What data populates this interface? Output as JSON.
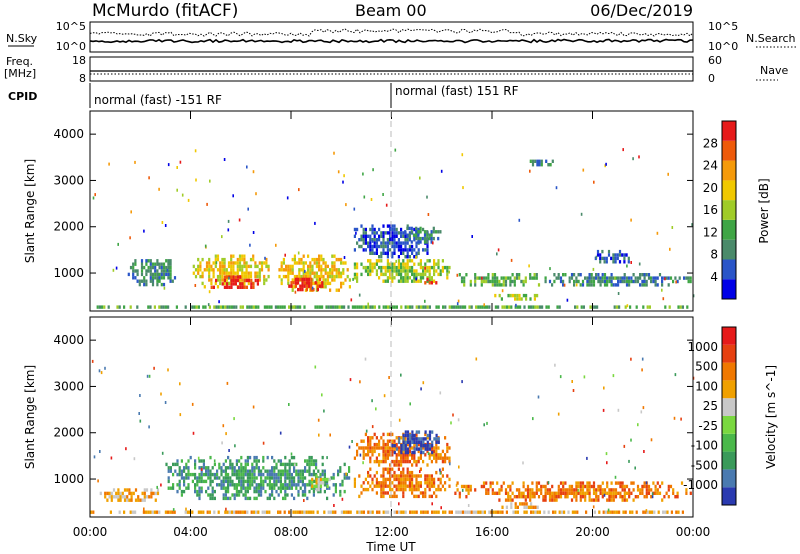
{
  "header": {
    "station": "McMurdo (fitACF)",
    "beam": "Beam 00",
    "date": "06/Dec/2019"
  },
  "noise_panel": {
    "left_label": "N.Sky",
    "right_label": "N.Search",
    "left_ticks": [
      "10^5",
      "10^0"
    ],
    "right_ticks": [
      "10^5",
      "10^0"
    ]
  },
  "freq_panel": {
    "left_label_1": "Freq.",
    "left_label_2": "[MHz]",
    "left_ticks": [
      "18",
      "8"
    ],
    "right_label": "Nave",
    "right_ticks": [
      "60",
      "0"
    ],
    "cpid_label": "CPID",
    "modes": [
      {
        "text": "normal (fast) -151 RF",
        "start_hour": 0
      },
      {
        "text": "normal (fast) 151 RF",
        "start_hour": 12
      }
    ]
  },
  "chart_data": [
    {
      "type": "heatmap",
      "name": "power",
      "ylabel": "Slant Range [km]",
      "xlabel": "",
      "x_ticks": [
        "00:00",
        "04:00",
        "08:00",
        "12:00",
        "16:00",
        "20:00",
        "00:00"
      ],
      "y_ticks": [
        1000,
        2000,
        3000,
        4000
      ],
      "xlim": [
        0,
        24
      ],
      "ylim": [
        180,
        4500
      ],
      "colorbar": {
        "label": "Power [dB]",
        "tick_labels": [
          "28",
          "24",
          "20",
          "16",
          "12",
          "8",
          "4"
        ],
        "colors": [
          "#0000e6",
          "#2a55c8",
          "#4a8a6a",
          "#3fa545",
          "#a0cc28",
          "#f0c800",
          "#f59a0a",
          "#ee5a0a",
          "#e61a1a"
        ]
      },
      "regions": [
        {
          "t0": 0.0,
          "t1": 24.0,
          "r0": 180,
          "r1": 300,
          "level": 3
        },
        {
          "t0": 1.5,
          "t1": 3.5,
          "r0": 700,
          "r1": 1300,
          "level": 2
        },
        {
          "t0": 4.0,
          "t1": 7.2,
          "r0": 600,
          "r1": 1400,
          "level": 5
        },
        {
          "t0": 4.8,
          "t1": 6.8,
          "r0": 650,
          "r1": 950,
          "level": 8
        },
        {
          "t0": 7.5,
          "t1": 10.4,
          "r0": 550,
          "r1": 1400,
          "level": 5
        },
        {
          "t0": 7.8,
          "t1": 9.4,
          "r0": 600,
          "r1": 900,
          "level": 8
        },
        {
          "t0": 10.5,
          "t1": 14.4,
          "r0": 750,
          "r1": 1300,
          "level": 4
        },
        {
          "t0": 10.5,
          "t1": 13.5,
          "r0": 1300,
          "r1": 2050,
          "level": 1
        },
        {
          "t0": 12.5,
          "t1": 14.0,
          "r0": 1600,
          "r1": 2000,
          "level": 2
        },
        {
          "t0": 13.3,
          "t1": 13.9,
          "r0": 650,
          "r1": 900,
          "level": 8
        },
        {
          "t0": 14.5,
          "t1": 18.0,
          "r0": 650,
          "r1": 1000,
          "level": 3
        },
        {
          "t0": 16.0,
          "t1": 18.0,
          "r0": 350,
          "r1": 550,
          "level": 4
        },
        {
          "t0": 18.0,
          "t1": 24.0,
          "r0": 650,
          "r1": 1000,
          "level": 2
        },
        {
          "t0": 20.0,
          "t1": 21.5,
          "r0": 1200,
          "r1": 1500,
          "level": 1
        },
        {
          "t0": 17.5,
          "t1": 18.5,
          "r0": 3300,
          "r1": 3450,
          "level": 2
        }
      ]
    },
    {
      "type": "heatmap",
      "name": "velocity",
      "ylabel": "Slant Range [km]",
      "xlabel": "Time UT",
      "x_ticks": [
        "00:00",
        "04:00",
        "08:00",
        "12:00",
        "16:00",
        "20:00",
        "00:00"
      ],
      "y_ticks": [
        1000,
        2000,
        3000,
        4000
      ],
      "xlim": [
        0,
        24
      ],
      "ylim": [
        180,
        4500
      ],
      "colorbar": {
        "label": "Velocity [m s^-1]",
        "tick_labels": [
          "1000",
          "500",
          "100",
          "25",
          "-25",
          "-100",
          "-500",
          "-1000"
        ],
        "colors": [
          "#2a3ab0",
          "#4a7ab0",
          "#3a9a5a",
          "#4ab84a",
          "#7ad840",
          "#c8c8c8",
          "#f0a000",
          "#f07800",
          "#e64010",
          "#e61a1a"
        ]
      },
      "regions": [
        {
          "t0": 0.0,
          "t1": 24.0,
          "r0": 180,
          "r1": 320,
          "level": 6
        },
        {
          "t0": 0.3,
          "t1": 3.0,
          "r0": 500,
          "r1": 800,
          "level": 6
        },
        {
          "t0": 3.0,
          "t1": 10.4,
          "r0": 500,
          "r1": 1500,
          "level": 2
        },
        {
          "t0": 8.8,
          "t1": 9.6,
          "r0": 700,
          "r1": 1100,
          "level": 5
        },
        {
          "t0": 10.5,
          "t1": 14.4,
          "r0": 550,
          "r1": 1250,
          "level": 7
        },
        {
          "t0": 10.5,
          "t1": 14.4,
          "r0": 1250,
          "r1": 2000,
          "level": 7
        },
        {
          "t0": 12.0,
          "t1": 14.0,
          "r0": 1500,
          "r1": 2050,
          "level": 0
        },
        {
          "t0": 14.5,
          "t1": 24.0,
          "r0": 500,
          "r1": 950,
          "level": 7
        },
        {
          "t0": 16.2,
          "t1": 18.0,
          "r0": 300,
          "r1": 500,
          "level": 6
        }
      ]
    }
  ]
}
